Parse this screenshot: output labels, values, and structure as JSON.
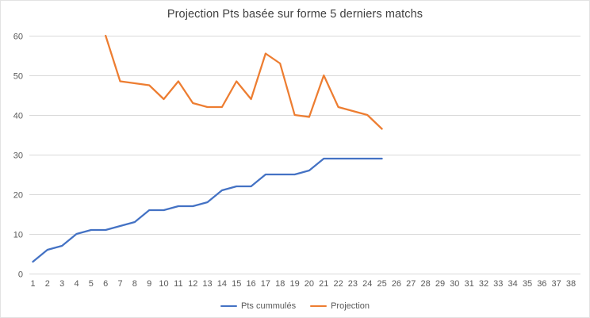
{
  "chart_data": {
    "type": "line",
    "title": "Projection Pts basée sur forme 5 derniers matchs",
    "xlabel": "",
    "ylabel": "",
    "ylim": [
      0,
      60
    ],
    "y_ticks": [
      0,
      10,
      20,
      30,
      40,
      50,
      60
    ],
    "x_ticks": [
      1,
      2,
      3,
      4,
      5,
      6,
      7,
      8,
      9,
      10,
      11,
      12,
      13,
      14,
      15,
      16,
      17,
      18,
      19,
      20,
      21,
      22,
      23,
      24,
      25,
      26,
      27,
      28,
      29,
      30,
      31,
      32,
      33,
      34,
      35,
      36,
      37,
      38
    ],
    "grid": "horizontal",
    "legend_position": "bottom",
    "series": [
      {
        "name": "Pts cummulés",
        "color": "#4472C4",
        "x": [
          1,
          2,
          3,
          4,
          5,
          6,
          7,
          8,
          9,
          10,
          11,
          12,
          13,
          14,
          15,
          16,
          17,
          18,
          19,
          20,
          21,
          22,
          23,
          24,
          25
        ],
        "values": [
          3,
          6,
          7,
          10,
          11,
          11,
          12,
          13,
          16,
          16,
          17,
          17,
          18,
          21,
          22,
          22,
          25,
          25,
          25,
          26,
          29,
          29,
          29,
          29,
          29
        ]
      },
      {
        "name": "Projection",
        "color": "#ED7D31",
        "x": [
          6,
          7,
          8,
          9,
          10,
          11,
          12,
          13,
          14,
          15,
          16,
          17,
          18,
          19,
          20,
          21,
          22,
          23,
          24,
          25
        ],
        "values": [
          60,
          48.5,
          48,
          47.5,
          44,
          48.5,
          43,
          42,
          42,
          48.5,
          44,
          55.5,
          53,
          40,
          39.5,
          50,
          42,
          41,
          40,
          36.5
        ]
      }
    ],
    "axis_color": "#D9D9D9",
    "tick_label_color": "#595959"
  }
}
